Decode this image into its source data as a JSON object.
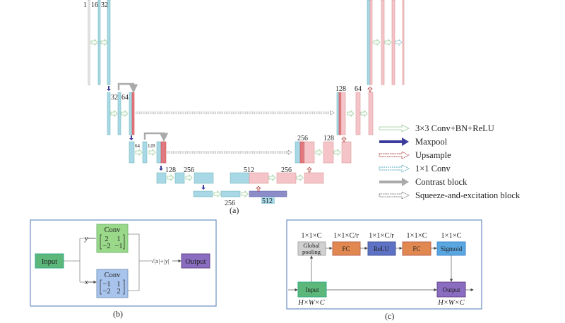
{
  "panel_a": {
    "caption": "(a)",
    "top_labels": [
      "1",
      "16",
      "32"
    ],
    "l2_labels": [
      "32",
      "64"
    ],
    "l3_labels": [
      "64",
      "128"
    ],
    "l4_labels": [
      "128",
      "256"
    ],
    "l5_label": "256",
    "bottom_label": "512",
    "dec4_labels": [
      "512",
      "256"
    ],
    "dec3_labels": [
      "256",
      "128"
    ],
    "dec2_labels": [
      "128",
      "64"
    ],
    "legend": [
      {
        "label": "3×3 Conv+BN+ReLU",
        "icon": "green-outline-arrow"
      },
      {
        "label": "Maxpool",
        "icon": "solid-navy-arrow"
      },
      {
        "label": "Upsample",
        "icon": "red-dotted-arrow"
      },
      {
        "label": "1×1 Conv",
        "icon": "blue-hatched-arrow"
      },
      {
        "label": "Contrast block",
        "icon": "gray-arrow"
      },
      {
        "label": "Squeeze-and-excitation block",
        "icon": "dashed-outline-arrow"
      }
    ],
    "colors": {
      "encoder": "#a8d8e6",
      "decoder": "#f4c4c8",
      "concat": "#e07880",
      "bottleneck": "#8c8cc8",
      "maxpool": "#3c3c9c"
    }
  },
  "panel_b": {
    "caption": "(b)",
    "input": "Input",
    "conv_top": {
      "title": "Conv",
      "matrix": [
        [
          "2",
          "1"
        ],
        [
          "−2",
          "−1"
        ]
      ],
      "var": "y"
    },
    "conv_bottom": {
      "title": "Conv",
      "matrix": [
        [
          "−1",
          "1"
        ],
        [
          "−2",
          "2"
        ]
      ],
      "var": "x"
    },
    "formula": "√|x|+|y|",
    "output": "Output"
  },
  "panel_c": {
    "caption": "(c)",
    "dims": [
      "1×1×C",
      "1×1×C/r",
      "1×1×C/r",
      "1×1×C",
      "1×1×C"
    ],
    "blocks": [
      "Global pooling",
      "FC",
      "ReLU",
      "FC",
      "Sigmoid"
    ],
    "global_pooling_lines": [
      "Global",
      "pooling"
    ],
    "input": "Input",
    "output": "Output",
    "input_dim": "H×W×C",
    "output_dim": "H×W×C"
  }
}
